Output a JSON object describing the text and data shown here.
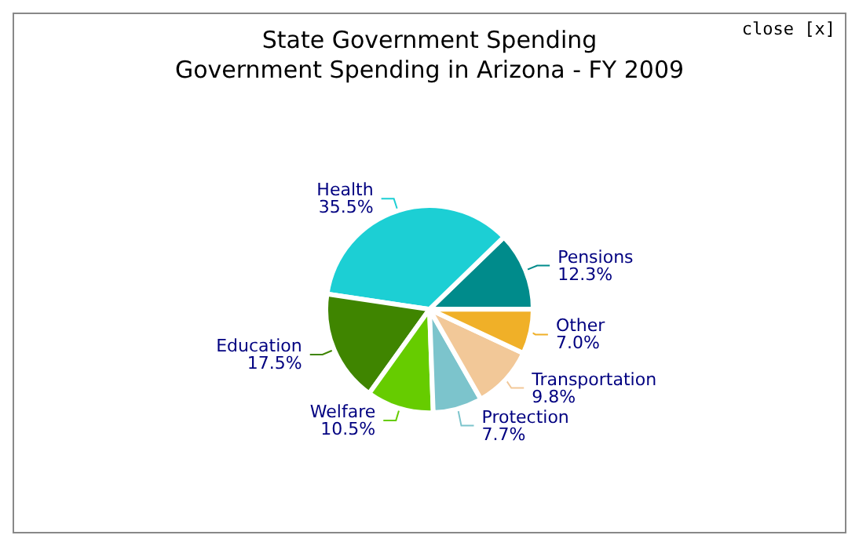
{
  "chart_data": {
    "type": "pie",
    "title": "State Government Spending",
    "subtitle": "Government Spending in Arizona - FY 2009",
    "categories": [
      "Pensions",
      "Health",
      "Education",
      "Welfare",
      "Protection",
      "Transportation",
      "Other"
    ],
    "values": [
      12.3,
      35.5,
      17.5,
      10.5,
      7.7,
      9.8,
      7.0
    ],
    "value_labels": [
      "12.3%",
      "35.5%",
      "17.5%",
      "10.5%",
      "7.7%",
      "9.8%",
      "7.0%"
    ],
    "colors": [
      "#008b8b",
      "#1ccfd4",
      "#3f8500",
      "#66cc00",
      "#7cc4cc",
      "#f2c898",
      "#f0b028"
    ],
    "annotations": [
      "close [x]"
    ],
    "legend": false
  }
}
